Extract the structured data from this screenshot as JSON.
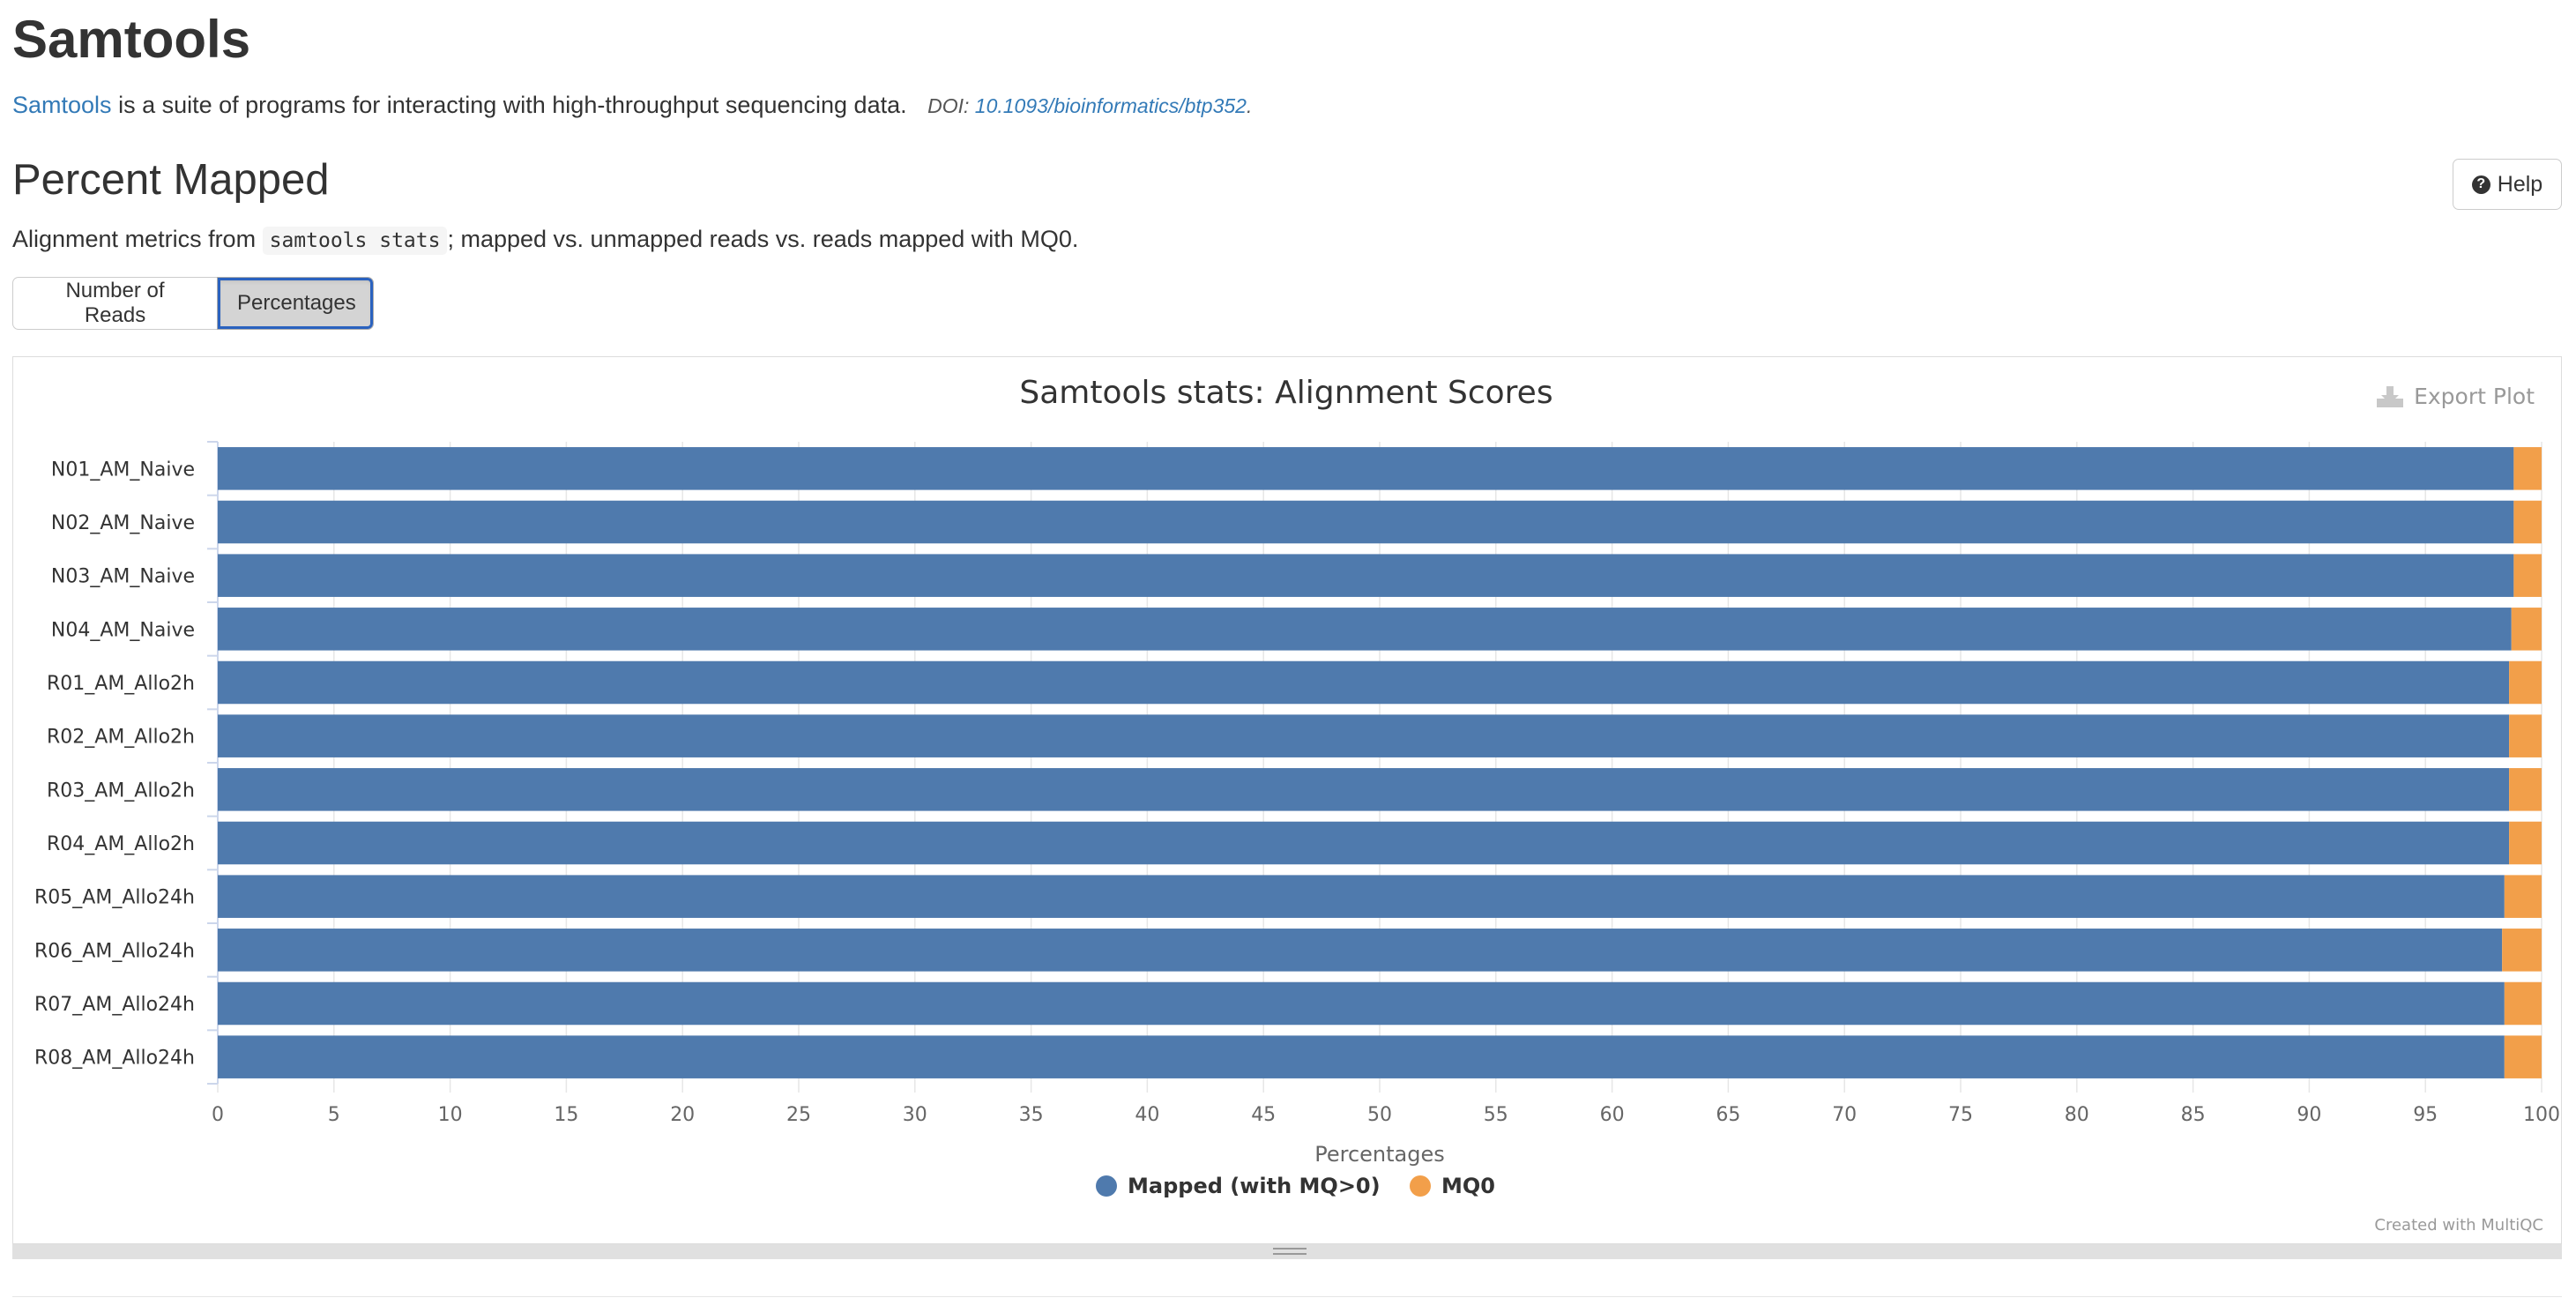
{
  "section": {
    "title": "Samtools",
    "link_text": "Samtools",
    "description": "is a suite of programs for interacting with high-throughput sequencing data.",
    "doi_label": "DOI:",
    "doi_link": "10.1093/bioinformatics/btp352",
    "doi_suffix": "."
  },
  "subsection": {
    "title": "Percent Mapped",
    "help_label": "Help",
    "desc_prefix": "Alignment metrics from",
    "desc_code": "samtools stats",
    "desc_suffix": "; mapped vs. unmapped reads vs. reads mapped with MQ0."
  },
  "toggle": {
    "options": [
      "Number of Reads",
      "Percentages"
    ],
    "active": "Percentages"
  },
  "plot": {
    "export_label": "Export Plot",
    "credit": "Created with MultiQC"
  },
  "colors": {
    "mapped": "#4f7aad",
    "mq0": "#f29f4a"
  },
  "chart_data": {
    "type": "bar",
    "orientation": "horizontal",
    "stacked": true,
    "title": "Samtools stats: Alignment Scores",
    "xlabel": "Percentages",
    "ylabel": "",
    "xlim": [
      0,
      100
    ],
    "xticks": [
      0,
      5,
      10,
      15,
      20,
      25,
      30,
      35,
      40,
      45,
      50,
      55,
      60,
      65,
      70,
      75,
      80,
      85,
      90,
      95,
      100
    ],
    "grid": true,
    "legend": "bottom-center",
    "categories": [
      "N01_AM_Naive",
      "N02_AM_Naive",
      "N03_AM_Naive",
      "N04_AM_Naive",
      "R01_AM_Allo2h",
      "R02_AM_Allo2h",
      "R03_AM_Allo2h",
      "R04_AM_Allo2h",
      "R05_AM_Allo24h",
      "R06_AM_Allo24h",
      "R07_AM_Allo24h",
      "R08_AM_Allo24h"
    ],
    "series": [
      {
        "name": "Mapped (with MQ>0)",
        "values": [
          98.8,
          98.8,
          98.8,
          98.7,
          98.6,
          98.6,
          98.6,
          98.6,
          98.4,
          98.3,
          98.4,
          98.4
        ]
      },
      {
        "name": "MQ0",
        "values": [
          1.2,
          1.2,
          1.2,
          1.3,
          1.4,
          1.4,
          1.4,
          1.4,
          1.6,
          1.7,
          1.6,
          1.6
        ]
      }
    ]
  }
}
